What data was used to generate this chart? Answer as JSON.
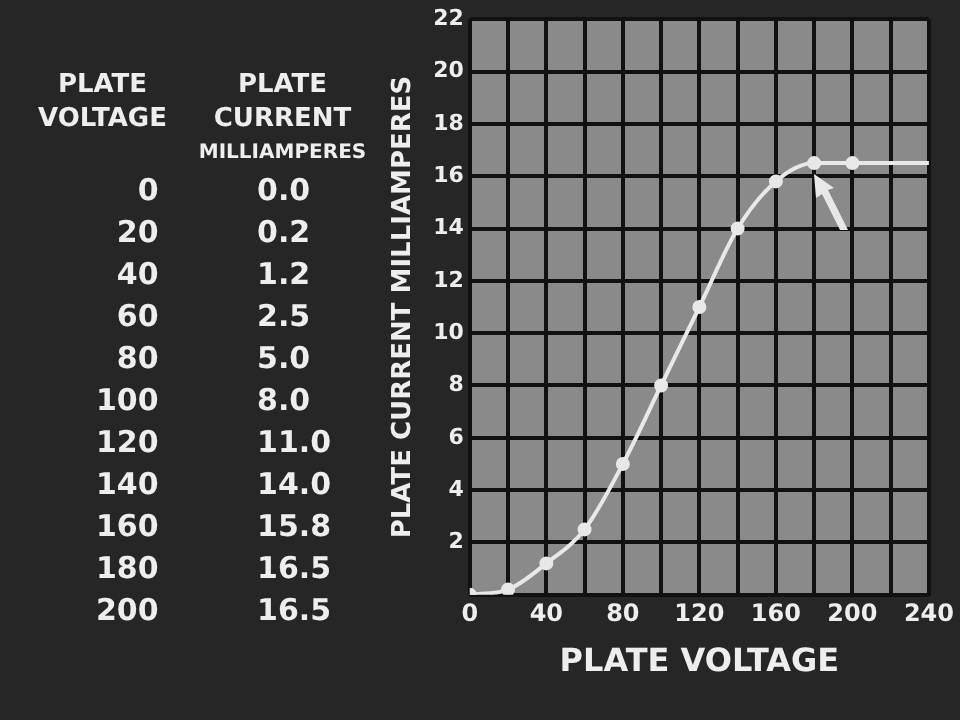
{
  "chart_data": [
    {
      "type": "other",
      "xlabel": "PLATE VOLTAGE",
      "ylabel": "PLATE CURRENT MILLIAMPERES",
      "annotations": [
        "0 0.0",
        "20 0.2",
        "40 1.2",
        "60 2.5",
        "80 5.0",
        "100 8.0",
        "120 11.0",
        "140 14.0",
        "160 15.8",
        "180 16.5",
        "200 16.5"
      ]
    },
    {
      "type": "line",
      "xlabel": "PLATE VOLTAGE",
      "ylabel": "PLATE CURRENT MILLIAMPERES",
      "series": [
        {
          "color": "#e8e8e8",
          "x": [
            0,
            20,
            40,
            60,
            80,
            100,
            120,
            140,
            160,
            180,
            200
          ],
          "values": [
            0.0,
            0.2,
            1.2,
            2.5,
            5.0,
            8.0,
            11.0,
            14.0,
            15.8,
            16.5,
            16.5
          ]
        },
        {
          "color": "#e8e8e8",
          "x": [
            200,
            240
          ],
          "values": [
            16.5,
            16.5
          ],
          "marker": "none"
        }
      ],
      "xlim": [
        0,
        240
      ],
      "xticks": [
        0,
        {
          "value": 20,
          "label": null
        },
        40,
        {
          "value": 60,
          "label": null
        },
        80,
        {
          "value": 100,
          "label": null
        },
        120,
        {
          "value": 140,
          "label": null
        },
        160,
        {
          "value": 180,
          "label": null
        },
        200,
        {
          "value": 220,
          "label": null
        },
        240
      ],
      "ylim": [
        0,
        22
      ],
      "yticks": [
        {
          "value": 0,
          "label": null
        },
        2,
        4,
        6,
        8,
        10,
        12,
        14,
        16,
        18,
        20,
        22
      ],
      "grid": true,
      "marker": "circle",
      "line_style": "solid",
      "legend": false
    }
  ]
}
